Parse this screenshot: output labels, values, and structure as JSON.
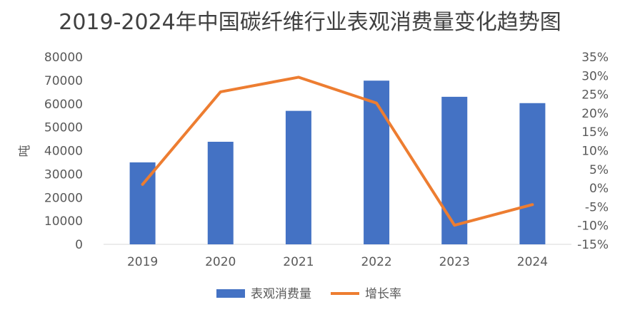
{
  "chart_data": {
    "type": "bar",
    "title": "2019-2024年中国碳纤维行业表观消费量变化趋势图",
    "categories": [
      "2019",
      "2020",
      "2021",
      "2022",
      "2023",
      "2024"
    ],
    "ylabel": "吨",
    "y2label": "",
    "ylim": [
      0,
      80000
    ],
    "y2lim": [
      -0.15,
      0.35
    ],
    "yticks": [
      "0",
      "10000",
      "20000",
      "30000",
      "40000",
      "50000",
      "60000",
      "70000",
      "80000"
    ],
    "y2ticks": [
      "-15%",
      "-10%",
      "-5%",
      "0%",
      "5%",
      "10%",
      "15%",
      "20%",
      "25%",
      "30%",
      "35%"
    ],
    "grid": false,
    "legend_position": "bottom",
    "series": [
      {
        "name": "表观消费量",
        "type": "bar",
        "axis": "left",
        "color": "#4472C4",
        "values": [
          35000,
          43800,
          57000,
          69900,
          63000,
          60300
        ]
      },
      {
        "name": "增长率",
        "type": "line",
        "axis": "right",
        "color": "#ED7D31",
        "values": [
          0.01,
          0.257,
          0.296,
          0.227,
          -0.099,
          -0.044
        ]
      }
    ]
  }
}
